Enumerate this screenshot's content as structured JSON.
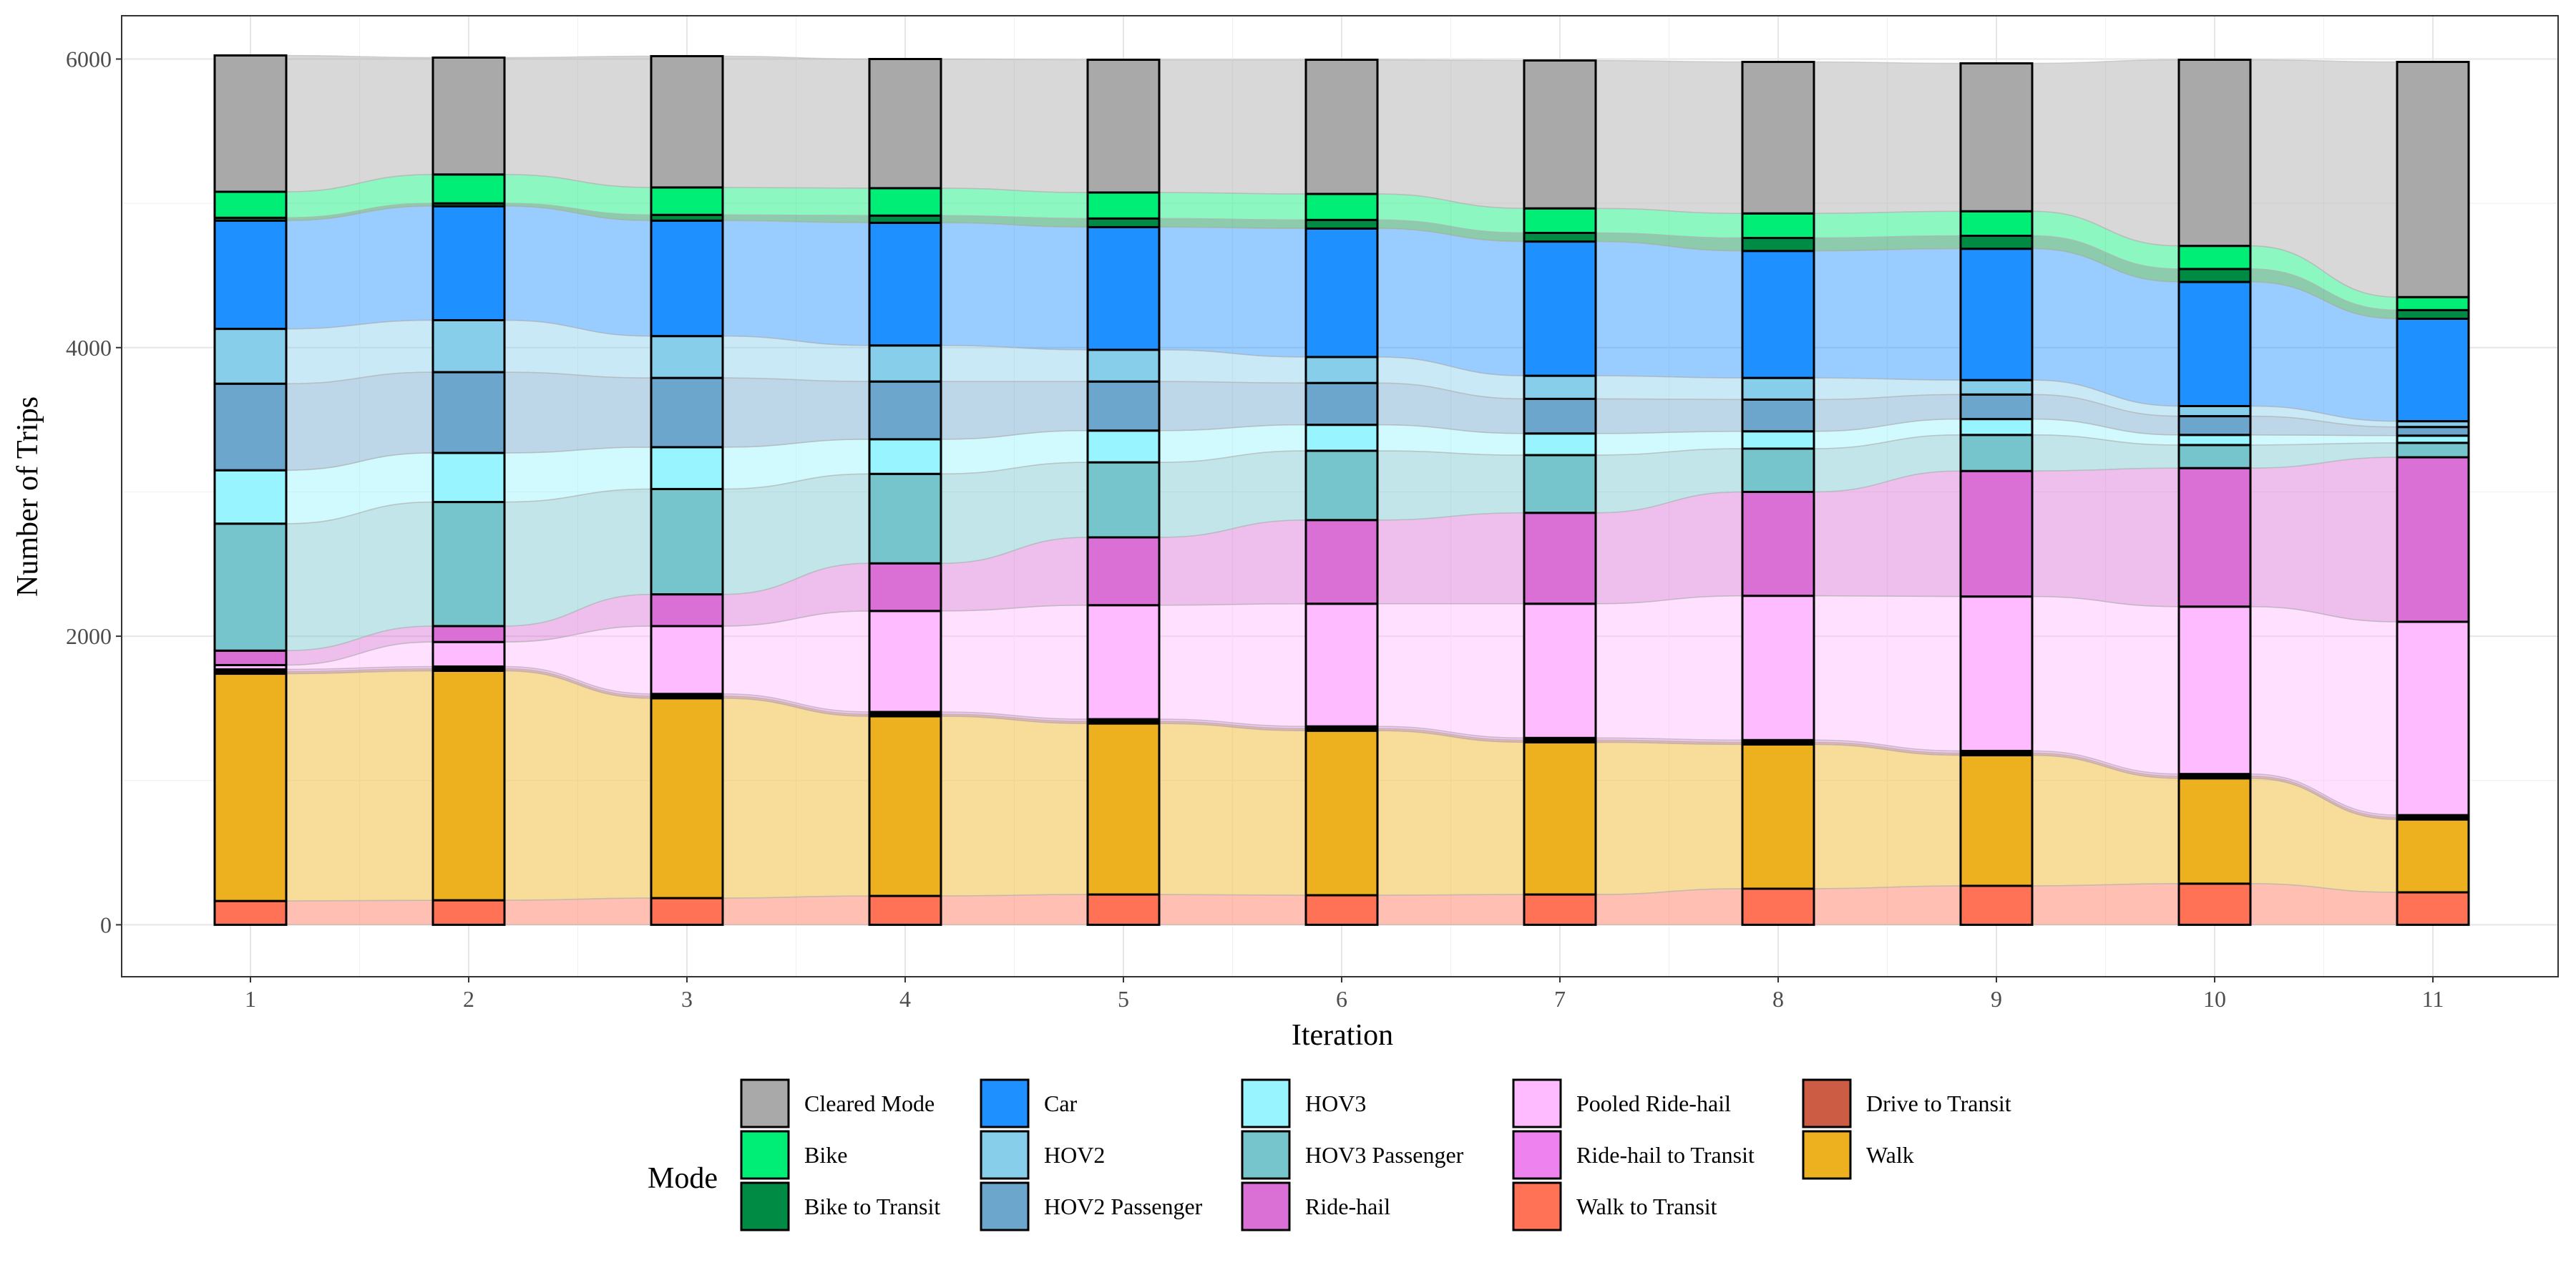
{
  "chart_data": {
    "type": "bar",
    "subtype": "stacked alluvial",
    "xlabel": "Iteration",
    "ylabel": "Number of Trips",
    "ylim": [
      -360,
      6300
    ],
    "y_ticks": [
      0,
      2000,
      4000,
      6000
    ],
    "categories": [
      "1",
      "2",
      "3",
      "4",
      "5",
      "6",
      "7",
      "8",
      "9",
      "10",
      "11"
    ],
    "legend_title": "Mode",
    "legend_position": "bottom",
    "grid": true,
    "series": [
      {
        "name": "Walk to Transit",
        "color": "#FF7256",
        "values": [
          165,
          170,
          185,
          200,
          210,
          205,
          210,
          250,
          270,
          285,
          225
        ]
      },
      {
        "name": "Walk",
        "color": "#EDB120",
        "values": [
          1575,
          1590,
          1385,
          1245,
          1185,
          1140,
          1055,
          1000,
          905,
          730,
          505
        ]
      },
      {
        "name": "Drive to Transit",
        "color": "#CD5C45",
        "values": [
          15,
          15,
          15,
          15,
          15,
          15,
          15,
          15,
          15,
          15,
          15
        ]
      },
      {
        "name": "Ride-hail to Transit",
        "color": "#EE82EE",
        "values": [
          15,
          15,
          15,
          15,
          15,
          15,
          15,
          15,
          15,
          15,
          15
        ]
      },
      {
        "name": "Pooled Ride-hail",
        "color": "#FFBBFF",
        "values": [
          30,
          170,
          470,
          700,
          790,
          850,
          930,
          1000,
          1070,
          1160,
          1340
        ]
      },
      {
        "name": "Ride-hail",
        "color": "#DA70D6",
        "values": [
          100,
          110,
          220,
          330,
          470,
          580,
          630,
          720,
          870,
          960,
          1140
        ]
      },
      {
        "name": "HOV3 Passenger",
        "color": "#76C5CC",
        "values": [
          880,
          860,
          730,
          620,
          520,
          480,
          400,
          300,
          250,
          160,
          100
        ]
      },
      {
        "name": "HOV3",
        "color": "#98F5FF",
        "values": [
          370,
          340,
          290,
          240,
          220,
          180,
          150,
          120,
          110,
          70,
          50
        ]
      },
      {
        "name": "HOV2 Passenger",
        "color": "#6CA6CD",
        "values": [
          600,
          560,
          480,
          400,
          340,
          290,
          240,
          220,
          170,
          130,
          60
        ]
      },
      {
        "name": "HOV2",
        "color": "#87CEEB",
        "values": [
          380,
          360,
          290,
          250,
          220,
          180,
          160,
          150,
          100,
          70,
          40
        ]
      },
      {
        "name": "Car",
        "color": "#1E90FF",
        "values": [
          750,
          790,
          800,
          850,
          850,
          890,
          930,
          880,
          910,
          860,
          710
        ]
      },
      {
        "name": "Bike to Transit",
        "color": "#008B45",
        "values": [
          20,
          20,
          40,
          50,
          60,
          60,
          60,
          90,
          90,
          90,
          60
        ]
      },
      {
        "name": "Bike",
        "color": "#00EE76",
        "values": [
          180,
          200,
          190,
          190,
          180,
          180,
          170,
          170,
          170,
          160,
          90
        ]
      },
      {
        "name": "Cleared Mode",
        "color": "#A9A9A9",
        "values": [
          945,
          810,
          910,
          895,
          920,
          930,
          1025,
          1050,
          1025,
          1290,
          1630
        ]
      }
    ],
    "legend_order": [
      "Cleared Mode",
      "Bike",
      "Bike to Transit",
      "Car",
      "HOV2",
      "HOV2 Passenger",
      "HOV3",
      "HOV3 Passenger",
      "Ride-hail",
      "Pooled Ride-hail",
      "Ride-hail to Transit",
      "Walk to Transit",
      "Drive to Transit",
      "Walk"
    ]
  }
}
